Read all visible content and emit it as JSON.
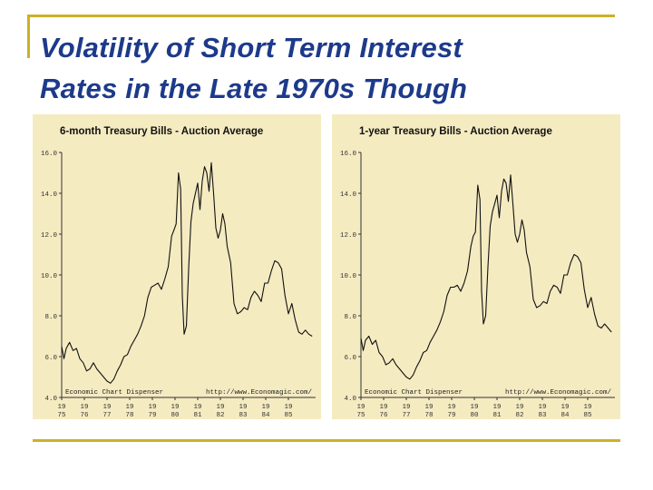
{
  "slide": {
    "title_line1": "Volatility of  Short Term Interest",
    "title_line2": "Rates in the Late 1970s Though",
    "accent_color": "#c9b12a",
    "title_color": "#1d3a8a",
    "panel_bg": "#f5ebc1"
  },
  "chart_data": [
    {
      "type": "line",
      "title": "6-month Treasury Bills - Auction Average",
      "ylim": [
        4.0,
        16.0
      ],
      "y_ticks": [
        "16.0",
        "14.0",
        "12.0",
        "10.0",
        "8.0",
        "6.0",
        "4.0"
      ],
      "xlim": [
        1975,
        1986.2
      ],
      "x_ticks": [
        {
          "top": "19",
          "bottom": "75"
        },
        {
          "top": "19",
          "bottom": "76"
        },
        {
          "top": "19",
          "bottom": "77"
        },
        {
          "top": "19",
          "bottom": "78"
        },
        {
          "top": "19",
          "bottom": "79"
        },
        {
          "top": "19",
          "bottom": "80"
        },
        {
          "top": "19",
          "bottom": "81"
        },
        {
          "top": "19",
          "bottom": "82"
        },
        {
          "top": "19",
          "bottom": "83"
        },
        {
          "top": "19",
          "bottom": "84"
        },
        {
          "top": "19",
          "bottom": "85"
        }
      ],
      "footer_left": "Economic Chart Dispenser",
      "footer_right": "http://www.Economagic.com/",
      "grid": false,
      "series": [
        {
          "x": [
            1975.0,
            1975.1,
            1975.2,
            1975.35,
            1975.5,
            1975.65,
            1975.8,
            1975.95,
            1976.1,
            1976.25,
            1976.4,
            1976.55,
            1976.7,
            1976.85,
            1977.0,
            1977.15,
            1977.3,
            1977.45,
            1977.6,
            1977.75,
            1977.9,
            1978.05,
            1978.2,
            1978.35,
            1978.5,
            1978.65,
            1978.8,
            1978.95,
            1979.1,
            1979.25,
            1979.4,
            1979.55,
            1979.7,
            1979.85,
            1979.95,
            1980.05,
            1980.15,
            1980.25,
            1980.32,
            1980.4,
            1980.5,
            1980.6,
            1980.7,
            1980.8,
            1980.9,
            1981.0,
            1981.1,
            1981.2,
            1981.3,
            1981.4,
            1981.5,
            1981.6,
            1981.7,
            1981.8,
            1981.9,
            1982.0,
            1982.1,
            1982.2,
            1982.3,
            1982.45,
            1982.6,
            1982.75,
            1982.9,
            1983.05,
            1983.2,
            1983.35,
            1983.5,
            1983.65,
            1983.8,
            1983.95,
            1984.1,
            1984.25,
            1984.4,
            1984.55,
            1984.7,
            1984.85,
            1985.0,
            1985.15,
            1985.3,
            1985.45,
            1985.6,
            1985.75,
            1985.9,
            1986.05
          ],
          "y": [
            6.5,
            5.9,
            6.4,
            6.7,
            6.3,
            6.4,
            5.9,
            5.7,
            5.3,
            5.4,
            5.7,
            5.4,
            5.2,
            5.0,
            4.8,
            4.7,
            4.9,
            5.3,
            5.6,
            6.0,
            6.1,
            6.5,
            6.8,
            7.1,
            7.5,
            8.0,
            8.9,
            9.4,
            9.5,
            9.6,
            9.3,
            9.8,
            10.4,
            11.9,
            12.2,
            12.5,
            15.0,
            14.2,
            9.0,
            7.1,
            7.5,
            10.3,
            12.6,
            13.5,
            14.0,
            14.5,
            13.2,
            14.6,
            15.3,
            15.0,
            14.1,
            15.5,
            14.0,
            12.3,
            11.8,
            12.2,
            13.0,
            12.5,
            11.4,
            10.6,
            8.6,
            8.1,
            8.2,
            8.4,
            8.3,
            8.9,
            9.2,
            9.0,
            8.7,
            9.6,
            9.6,
            10.2,
            10.7,
            10.6,
            10.3,
            9.0,
            8.1,
            8.6,
            7.8,
            7.2,
            7.1,
            7.3,
            7.1,
            7.0
          ]
        }
      ]
    },
    {
      "type": "line",
      "title": "1-year Treasury Bills - Auction Average",
      "ylim": [
        4.0,
        16.0
      ],
      "y_ticks": [
        "16.0",
        "14.0",
        "12.0",
        "10.0",
        "8.0",
        "6.0",
        "4.0"
      ],
      "xlim": [
        1975,
        1986.2
      ],
      "x_ticks": [
        {
          "top": "19",
          "bottom": "75"
        },
        {
          "top": "19",
          "bottom": "76"
        },
        {
          "top": "19",
          "bottom": "77"
        },
        {
          "top": "19",
          "bottom": "78"
        },
        {
          "top": "19",
          "bottom": "79"
        },
        {
          "top": "19",
          "bottom": "80"
        },
        {
          "top": "19",
          "bottom": "81"
        },
        {
          "top": "19",
          "bottom": "82"
        },
        {
          "top": "19",
          "bottom": "83"
        },
        {
          "top": "19",
          "bottom": "84"
        },
        {
          "top": "19",
          "bottom": "85"
        }
      ],
      "footer_left": "Economic Chart Dispenser",
      "footer_right": "http://www.Economagic.com/",
      "grid": false,
      "series": [
        {
          "x": [
            1975.0,
            1975.1,
            1975.2,
            1975.35,
            1975.5,
            1975.65,
            1975.8,
            1975.95,
            1976.1,
            1976.25,
            1976.4,
            1976.55,
            1976.7,
            1976.85,
            1977.0,
            1977.15,
            1977.3,
            1977.45,
            1977.6,
            1977.75,
            1977.9,
            1978.05,
            1978.2,
            1978.35,
            1978.5,
            1978.65,
            1978.8,
            1978.95,
            1979.1,
            1979.25,
            1979.4,
            1979.55,
            1979.7,
            1979.85,
            1979.95,
            1980.05,
            1980.15,
            1980.25,
            1980.32,
            1980.4,
            1980.5,
            1980.6,
            1980.7,
            1980.8,
            1980.9,
            1981.0,
            1981.1,
            1981.2,
            1981.3,
            1981.4,
            1981.5,
            1981.6,
            1981.7,
            1981.8,
            1981.9,
            1982.0,
            1982.1,
            1982.2,
            1982.3,
            1982.45,
            1982.6,
            1982.75,
            1982.9,
            1983.05,
            1983.2,
            1983.35,
            1983.5,
            1983.65,
            1983.8,
            1983.95,
            1984.1,
            1984.25,
            1984.4,
            1984.55,
            1984.7,
            1984.85,
            1985.0,
            1985.15,
            1985.3,
            1985.45,
            1985.6,
            1985.75,
            1985.9,
            1986.05
          ],
          "y": [
            6.9,
            6.3,
            6.8,
            7.0,
            6.6,
            6.8,
            6.2,
            6.0,
            5.6,
            5.7,
            5.9,
            5.6,
            5.4,
            5.2,
            5.0,
            4.9,
            5.1,
            5.5,
            5.8,
            6.2,
            6.3,
            6.7,
            7.0,
            7.3,
            7.7,
            8.2,
            9.0,
            9.4,
            9.4,
            9.5,
            9.2,
            9.6,
            10.2,
            11.4,
            11.9,
            12.1,
            14.4,
            13.7,
            9.2,
            7.6,
            8.0,
            10.4,
            12.4,
            13.1,
            13.5,
            13.9,
            12.8,
            14.1,
            14.7,
            14.5,
            13.6,
            14.9,
            13.5,
            12.0,
            11.6,
            12.0,
            12.7,
            12.2,
            11.1,
            10.4,
            8.8,
            8.4,
            8.5,
            8.7,
            8.6,
            9.2,
            9.5,
            9.4,
            9.1,
            10.0,
            10.0,
            10.6,
            11.0,
            10.9,
            10.6,
            9.3,
            8.4,
            8.9,
            8.1,
            7.5,
            7.4,
            7.6,
            7.4,
            7.2
          ]
        }
      ]
    }
  ]
}
